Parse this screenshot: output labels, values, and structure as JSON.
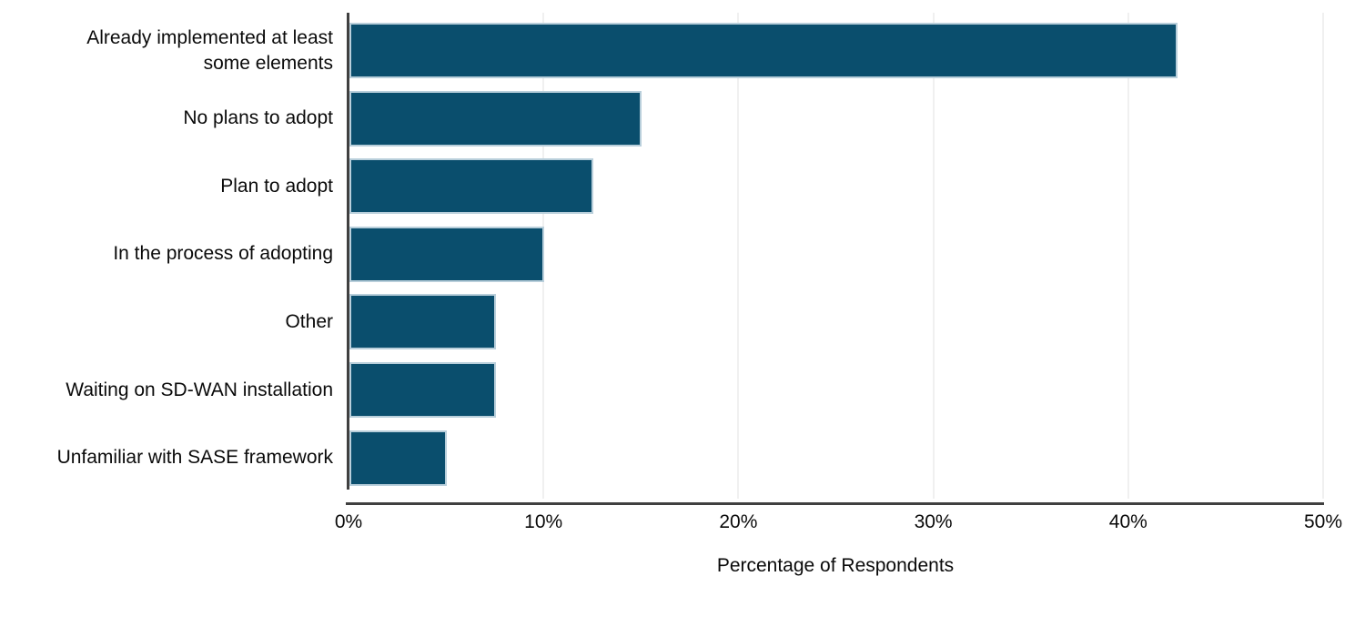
{
  "chart_data": {
    "type": "bar",
    "orientation": "horizontal",
    "title": "",
    "categories": [
      "Already implemented at least some elements",
      "No plans to adopt",
      "Plan to adopt",
      "In the process of adopting",
      "Other",
      "Waiting on SD-WAN installation",
      "Unfamiliar with SASE framework"
    ],
    "values": [
      42.5,
      15,
      12.5,
      10,
      7.5,
      7.5,
      5
    ],
    "unit": "%",
    "xlabel": "Percentage of Respondents",
    "ylabel": "",
    "xlim": [
      0,
      50
    ],
    "x_tick_labels": [
      "0%",
      "10%",
      "20%",
      "30%",
      "40%",
      "50%"
    ],
    "x_tick_values": [
      0,
      10,
      20,
      30,
      40,
      50
    ],
    "grid": "faint vertical gridlines at each tick",
    "legend_position": "none",
    "colors": {
      "bar_fill": "#0a4e6d",
      "bar_edge": "#b9cfdb",
      "axis_line": "#404040",
      "gridline": "#f0f0f0",
      "text": "#0a0a0a",
      "background": "#ffffff"
    }
  }
}
